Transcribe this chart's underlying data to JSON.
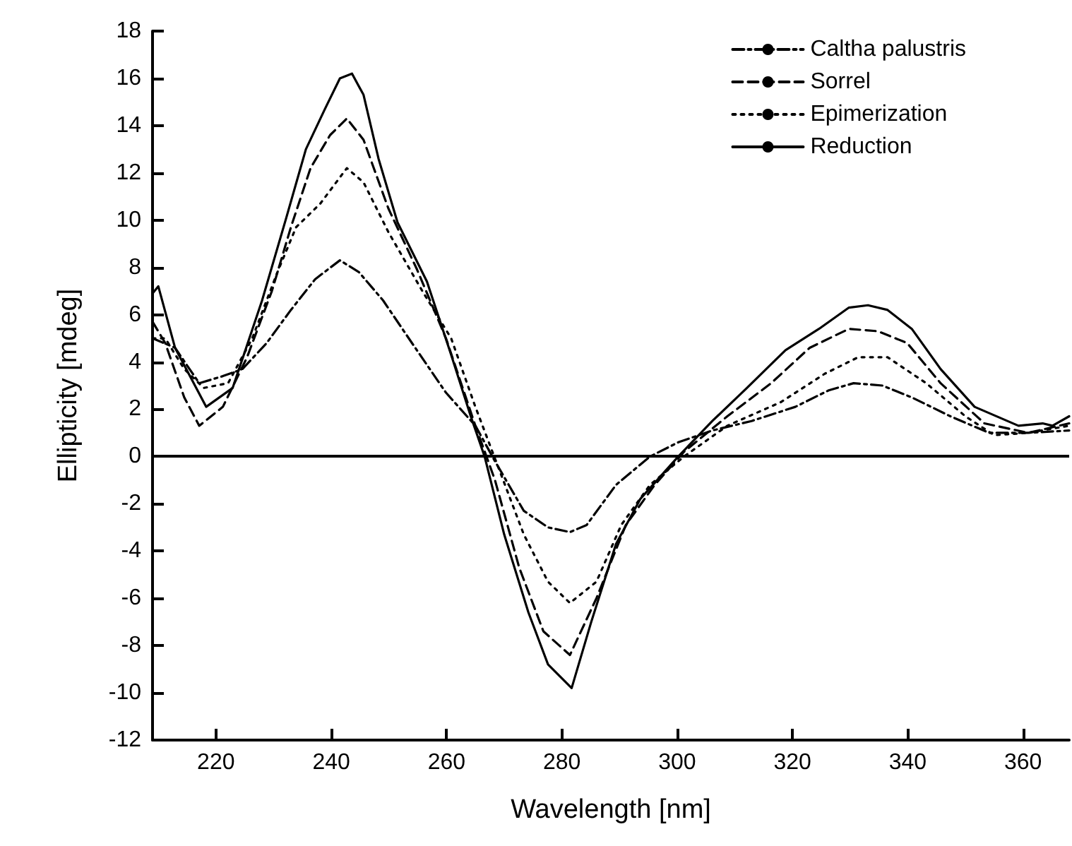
{
  "chart_data": {
    "type": "line",
    "xlabel": "Wavelength [nm]",
    "ylabel": "Ellipticity [mdeg]",
    "xlim": [
      209,
      368
    ],
    "xticks": [
      220,
      240,
      260,
      280,
      300,
      320,
      340,
      360
    ],
    "ylim": [
      -12,
      18
    ],
    "yticks": [
      -12,
      -10,
      -8,
      -6,
      -4,
      -2,
      0,
      2,
      4,
      6,
      8,
      10,
      12,
      14,
      16,
      18
    ],
    "grid": false,
    "legend": "top right",
    "marker": "none",
    "ref_lines": [
      {
        "axis": "y",
        "value": 0,
        "color": "#000000",
        "line_style": "solid"
      }
    ],
    "series": [
      {
        "name": "Caltha palustris",
        "color": "#000000",
        "line_style": "dashdot",
        "x": [
          209,
          212.9,
          217.1,
          221.2,
          224.6,
          228.8,
          233,
          237.2,
          241.5,
          244.8,
          249,
          254,
          259.9,
          265,
          268.4,
          273.4,
          277.6,
          281.4,
          284.3,
          289.4,
          295.3,
          300.2,
          306.1,
          312.9,
          320.5,
          326.3,
          330.6,
          335.6,
          340.7,
          347.4,
          354.1,
          360.9,
          368
        ],
        "values": [
          5.0,
          4.6,
          3.1,
          3.4,
          3.7,
          4.8,
          6.2,
          7.5,
          8.3,
          7.8,
          6.6,
          4.8,
          2.7,
          1.3,
          -0.2,
          -2.3,
          -3.0,
          -3.2,
          -2.9,
          -1.2,
          0,
          0.6,
          1.1,
          1.5,
          2.1,
          2.8,
          3.1,
          3.0,
          2.5,
          1.7,
          1.0,
          1.0,
          1.1
        ]
      },
      {
        "name": "Sorrel",
        "color": "#000000",
        "line_style": "dashed",
        "x": [
          209,
          211.2,
          214.5,
          217.1,
          221.2,
          225.4,
          229.7,
          233,
          236.4,
          239.8,
          242.7,
          245.6,
          249.9,
          254.9,
          259.9,
          265,
          268.4,
          272.6,
          276.8,
          281.4,
          286,
          291.1,
          296.1,
          301.2,
          308.7,
          316.3,
          323,
          329.8,
          334.8,
          339.9,
          345.7,
          353.3,
          360.9,
          368
        ],
        "values": [
          5.7,
          4.8,
          2.5,
          1.3,
          2.1,
          4.2,
          7.0,
          9.7,
          12.2,
          13.6,
          14.3,
          13.4,
          10.5,
          7.9,
          5.0,
          1.3,
          -1.0,
          -4.7,
          -7.4,
          -8.4,
          -6.0,
          -2.9,
          -1.2,
          0.2,
          1.7,
          3.1,
          4.6,
          5.4,
          5.3,
          4.8,
          3.1,
          1.4,
          1.0,
          1.4
        ]
      },
      {
        "name": "Epimerization",
        "color": "#000000",
        "line_style": "dotted",
        "x": [
          209,
          211.2,
          214.5,
          217.9,
          222.1,
          226.3,
          230.5,
          233.9,
          238.1,
          242.7,
          245.6,
          249.9,
          255.8,
          260.8,
          265,
          269.2,
          273.4,
          277.6,
          281.4,
          286,
          290.3,
          295.3,
          301.2,
          308.7,
          318,
          325.6,
          331.4,
          336.5,
          343.2,
          350,
          355,
          360.9,
          368
        ],
        "values": [
          5.0,
          5.0,
          3.7,
          2.9,
          3.1,
          5.0,
          7.7,
          9.7,
          10.7,
          12.2,
          11.6,
          9.5,
          7.0,
          5.0,
          2.1,
          -0.6,
          -3.3,
          -5.3,
          -6.2,
          -5.3,
          -2.9,
          -1.2,
          0,
          1.3,
          2.3,
          3.5,
          4.2,
          4.2,
          3.1,
          1.7,
          0.9,
          1.0,
          1.3
        ]
      },
      {
        "name": "Reduction",
        "color": "#000000",
        "line_style": "solid",
        "x": [
          209,
          210,
          212.9,
          218.3,
          222.9,
          228,
          232.2,
          235.6,
          238.9,
          241.5,
          243.6,
          245.6,
          248.2,
          251.5,
          256.6,
          260.8,
          264.2,
          266.6,
          270,
          274.2,
          277.6,
          281.7,
          285.1,
          289.4,
          293.6,
          300.2,
          306.1,
          312.1,
          318.8,
          324.6,
          329.8,
          333.1,
          336.5,
          340.7,
          345.7,
          351.6,
          359.2,
          363.4,
          365.1,
          368
        ],
        "values": [
          6.9,
          7.2,
          4.6,
          2.1,
          2.9,
          6.6,
          10.1,
          13.0,
          14.7,
          16.0,
          16.2,
          15.3,
          12.6,
          9.9,
          7.4,
          4.3,
          1.7,
          0,
          -3.3,
          -6.6,
          -8.8,
          -9.8,
          -7.0,
          -3.7,
          -1.8,
          0,
          1.5,
          2.9,
          4.5,
          5.4,
          6.3,
          6.4,
          6.2,
          5.4,
          3.7,
          2.1,
          1.3,
          1.4,
          1.3,
          1.7
        ]
      }
    ]
  }
}
